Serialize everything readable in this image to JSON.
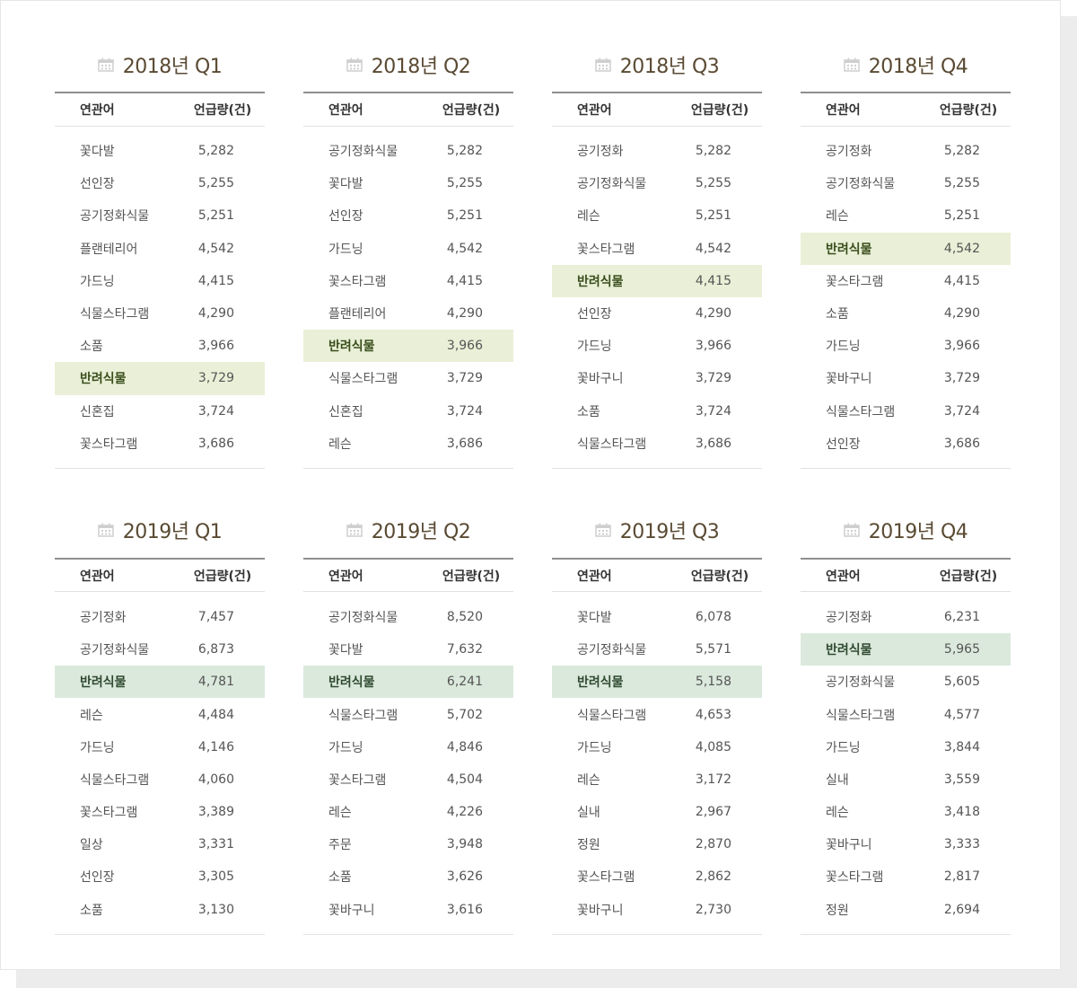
{
  "colors": {
    "title": "#5a4a33",
    "highlight_2018": "#e9f0d7",
    "highlight_2019": "#dbe9dc",
    "icon": "#cfcfcf"
  },
  "icon": "calendar-icon",
  "headers": {
    "keyword": "연관어",
    "count": "언급량(건)"
  },
  "panels": [
    {
      "title": "2018년 Q1",
      "hl_style": "hl",
      "rows": [
        {
          "k": "꽃다발",
          "v": "5,282"
        },
        {
          "k": "선인장",
          "v": "5,255"
        },
        {
          "k": "공기정화식물",
          "v": "5,251"
        },
        {
          "k": "플랜테리어",
          "v": "4,542"
        },
        {
          "k": "가드닝",
          "v": "4,415"
        },
        {
          "k": "식물스타그램",
          "v": "4,290"
        },
        {
          "k": "소품",
          "v": "3,966"
        },
        {
          "k": "반려식물",
          "v": "3,729",
          "hl": true
        },
        {
          "k": "신혼집",
          "v": "3,724"
        },
        {
          "k": "꽃스타그램",
          "v": "3,686"
        }
      ]
    },
    {
      "title": "2018년 Q2",
      "hl_style": "hl",
      "rows": [
        {
          "k": "공기정화식물",
          "v": "5,282"
        },
        {
          "k": "꽃다발",
          "v": "5,255"
        },
        {
          "k": "선인장",
          "v": "5,251"
        },
        {
          "k": "가드닝",
          "v": "4,542"
        },
        {
          "k": "꽃스타그램",
          "v": "4,415"
        },
        {
          "k": "플랜테리어",
          "v": "4,290"
        },
        {
          "k": "반려식물",
          "v": "3,966",
          "hl": true
        },
        {
          "k": "식물스타그램",
          "v": "3,729"
        },
        {
          "k": "신혼집",
          "v": "3,724"
        },
        {
          "k": "레슨",
          "v": "3,686"
        }
      ]
    },
    {
      "title": "2018년 Q3",
      "hl_style": "hl",
      "rows": [
        {
          "k": "공기정화",
          "v": "5,282"
        },
        {
          "k": "공기정화식물",
          "v": "5,255"
        },
        {
          "k": "레슨",
          "v": "5,251"
        },
        {
          "k": "꽃스타그램",
          "v": "4,542"
        },
        {
          "k": "반려식물",
          "v": "4,415",
          "hl": true
        },
        {
          "k": "선인장",
          "v": "4,290"
        },
        {
          "k": "가드닝",
          "v": "3,966"
        },
        {
          "k": "꽃바구니",
          "v": "3,729"
        },
        {
          "k": "소품",
          "v": "3,724"
        },
        {
          "k": "식물스타그램",
          "v": "3,686"
        }
      ]
    },
    {
      "title": "2018년 Q4",
      "hl_style": "hl",
      "rows": [
        {
          "k": "공기정화",
          "v": "5,282"
        },
        {
          "k": "공기정화식물",
          "v": "5,255"
        },
        {
          "k": "레슨",
          "v": "5,251"
        },
        {
          "k": "반려식물",
          "v": "4,542",
          "hl": true
        },
        {
          "k": "꽃스타그램",
          "v": "4,415"
        },
        {
          "k": "소품",
          "v": "4,290"
        },
        {
          "k": "가드닝",
          "v": "3,966"
        },
        {
          "k": "꽃바구니",
          "v": "3,729"
        },
        {
          "k": "식물스타그램",
          "v": "3,724"
        },
        {
          "k": "선인장",
          "v": "3,686"
        }
      ]
    },
    {
      "title": "2019년 Q1",
      "hl_style": "hl2",
      "rows": [
        {
          "k": "공기정화",
          "v": "7,457"
        },
        {
          "k": "공기정화식물",
          "v": "6,873"
        },
        {
          "k": "반려식물",
          "v": "4,781",
          "hl": true
        },
        {
          "k": "레슨",
          "v": "4,484"
        },
        {
          "k": "가드닝",
          "v": "4,146"
        },
        {
          "k": "식물스타그램",
          "v": "4,060"
        },
        {
          "k": "꽃스타그램",
          "v": "3,389"
        },
        {
          "k": "일상",
          "v": "3,331"
        },
        {
          "k": "선인장",
          "v": "3,305"
        },
        {
          "k": "소품",
          "v": "3,130"
        }
      ]
    },
    {
      "title": "2019년 Q2",
      "hl_style": "hl2",
      "rows": [
        {
          "k": "공기정화식물",
          "v": "8,520"
        },
        {
          "k": "꽃다발",
          "v": "7,632"
        },
        {
          "k": "반려식물",
          "v": "6,241",
          "hl": true
        },
        {
          "k": "식물스타그램",
          "v": "5,702"
        },
        {
          "k": "가드닝",
          "v": "4,846"
        },
        {
          "k": "꽃스타그램",
          "v": "4,504"
        },
        {
          "k": "레슨",
          "v": "4,226"
        },
        {
          "k": "주문",
          "v": "3,948"
        },
        {
          "k": "소품",
          "v": "3,626"
        },
        {
          "k": "꽃바구니",
          "v": "3,616"
        }
      ]
    },
    {
      "title": "2019년 Q3",
      "hl_style": "hl2",
      "rows": [
        {
          "k": "꽃다발",
          "v": "6,078"
        },
        {
          "k": "공기정화식물",
          "v": "5,571"
        },
        {
          "k": "반려식물",
          "v": "5,158",
          "hl": true
        },
        {
          "k": "식물스타그램",
          "v": "4,653"
        },
        {
          "k": "가드닝",
          "v": "4,085"
        },
        {
          "k": "레슨",
          "v": "3,172"
        },
        {
          "k": "실내",
          "v": "2,967"
        },
        {
          "k": "정원",
          "v": "2,870"
        },
        {
          "k": "꽃스타그램",
          "v": "2,862"
        },
        {
          "k": "꽃바구니",
          "v": "2,730"
        }
      ]
    },
    {
      "title": "2019년 Q4",
      "hl_style": "hl2",
      "rows": [
        {
          "k": "공기정화",
          "v": "6,231"
        },
        {
          "k": "반려식물",
          "v": "5,965",
          "hl": true
        },
        {
          "k": "공기정화식물",
          "v": "5,605"
        },
        {
          "k": "식물스타그램",
          "v": "4,577"
        },
        {
          "k": "가드닝",
          "v": "3,844"
        },
        {
          "k": "실내",
          "v": "3,559"
        },
        {
          "k": "레슨",
          "v": "3,418"
        },
        {
          "k": "꽃바구니",
          "v": "3,333"
        },
        {
          "k": "꽃스타그램",
          "v": "2,817"
        },
        {
          "k": "정원",
          "v": "2,694"
        }
      ]
    }
  ]
}
